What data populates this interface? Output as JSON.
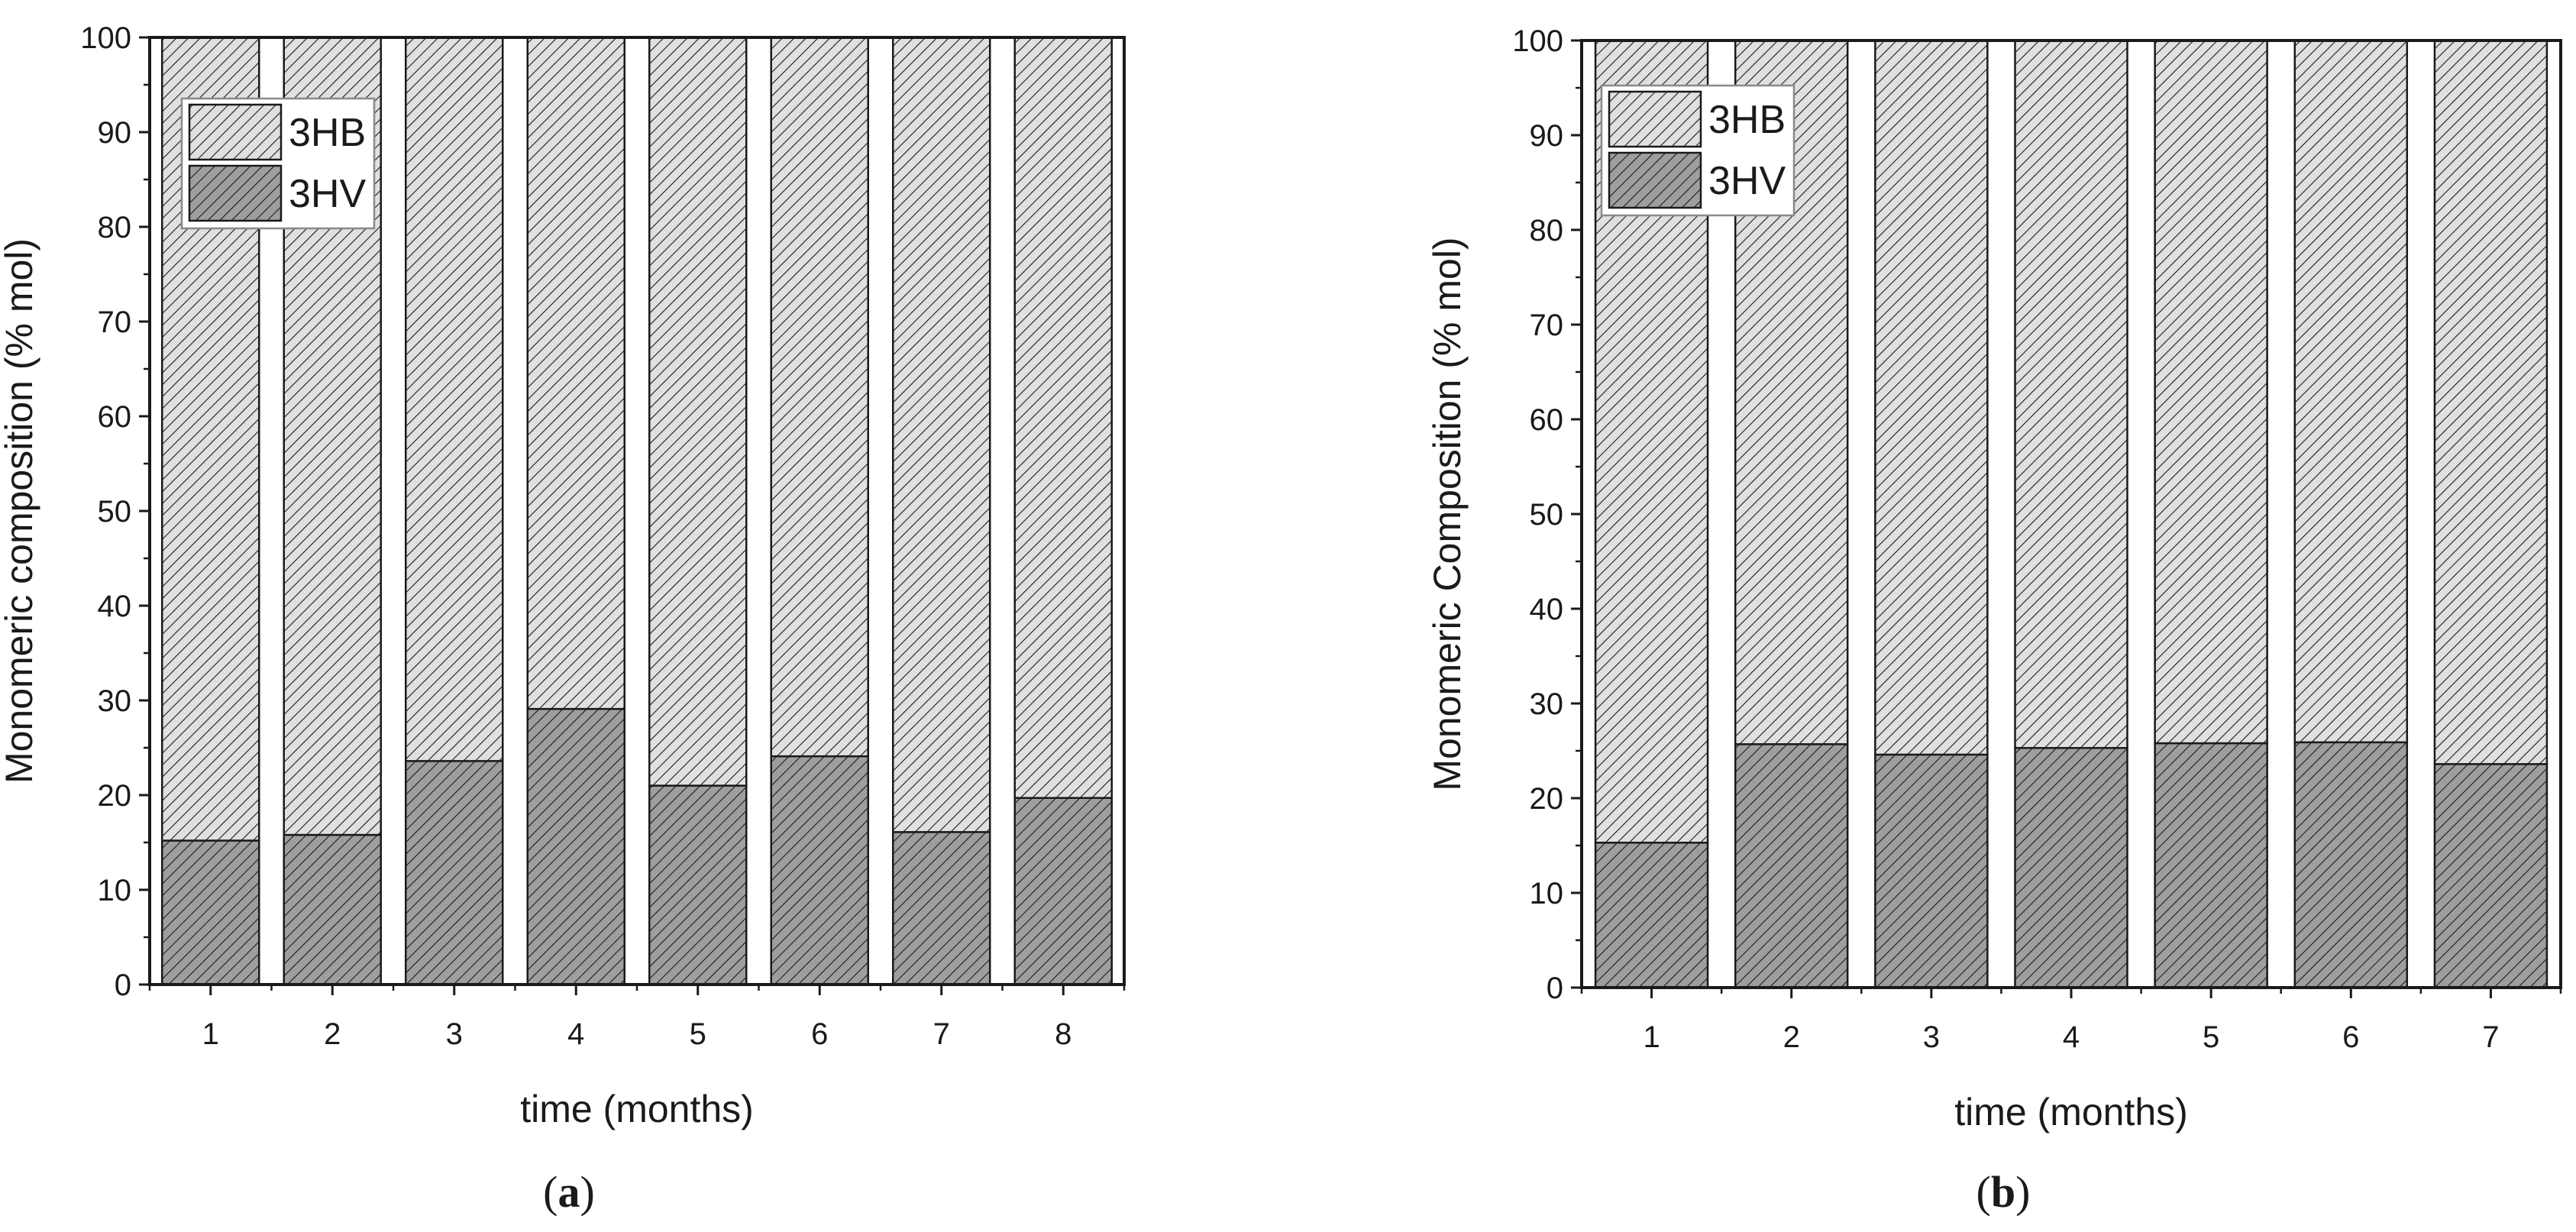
{
  "colors": {
    "hb_fill": "#e0e0e0",
    "hv_fill": "#9e9e9e",
    "hatch": "#1a1a1a",
    "axis": "#1a1a1a"
  },
  "chart_data": [
    {
      "type": "bar",
      "stacked": true,
      "panel_label": "a",
      "xlabel": "time (months)",
      "ylabel": "Monomeric composition (% mol)",
      "ylim": [
        0,
        100
      ],
      "yticks": [
        0,
        10,
        20,
        30,
        40,
        50,
        60,
        70,
        80,
        90,
        100
      ],
      "categories": [
        "1",
        "2",
        "3",
        "4",
        "5",
        "6",
        "7",
        "8"
      ],
      "series": [
        {
          "name": "3HV",
          "values": [
            15.2,
            15.8,
            23.6,
            29.1,
            21.0,
            24.1,
            16.1,
            19.7
          ]
        },
        {
          "name": "3HB",
          "values": [
            84.8,
            84.2,
            76.4,
            70.9,
            79.0,
            75.9,
            83.9,
            80.3
          ]
        }
      ],
      "legend": {
        "placement": "top-left",
        "entries": [
          "3HB",
          "3HV"
        ]
      },
      "grid": false
    },
    {
      "type": "bar",
      "stacked": true,
      "panel_label": "b",
      "xlabel": "time (months)",
      "ylabel": "Monomeric Composition (% mol)",
      "ylim": [
        0,
        100
      ],
      "yticks": [
        0,
        10,
        20,
        30,
        40,
        50,
        60,
        70,
        80,
        90,
        100
      ],
      "categories": [
        "1",
        "2",
        "3",
        "4",
        "5",
        "6",
        "7"
      ],
      "series": [
        {
          "name": "3HV",
          "values": [
            15.3,
            25.7,
            24.6,
            25.3,
            25.8,
            25.9,
            23.6
          ]
        },
        {
          "name": "3HB",
          "values": [
            84.7,
            74.3,
            75.4,
            74.7,
            74.2,
            74.1,
            76.4
          ]
        }
      ],
      "legend": {
        "placement": "top-left",
        "entries": [
          "3HB",
          "3HV"
        ]
      },
      "grid": false
    }
  ]
}
